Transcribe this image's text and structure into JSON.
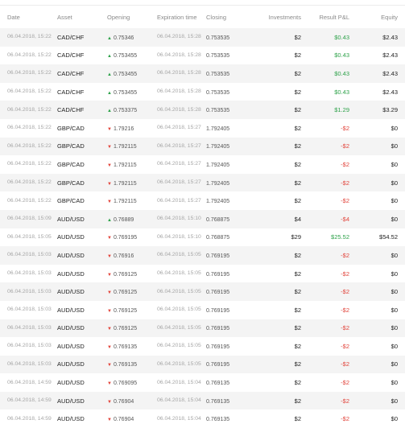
{
  "headers": {
    "date": "Date",
    "asset": "Asset",
    "opening": "Opening",
    "expiration": "Expiration time",
    "closing": "Closing",
    "investments": "Investments",
    "result": "Result P&L",
    "equity": "Equity"
  },
  "colors": {
    "up": "#2ea24a",
    "down": "#e2453c"
  },
  "rows": [
    {
      "date": "06.04.2018, 15:22",
      "asset": "CAD/CHF",
      "dir": "up",
      "opening": "0.75346",
      "exp": "06.04.2018, 15:28",
      "closing": "0.753535",
      "inv": "$2",
      "result": "$0.43",
      "res_sign": "pos",
      "equity": "$2.43"
    },
    {
      "date": "06.04.2018, 15:22",
      "asset": "CAD/CHF",
      "dir": "up",
      "opening": "0.753455",
      "exp": "06.04.2018, 15:28",
      "closing": "0.753535",
      "inv": "$2",
      "result": "$0.43",
      "res_sign": "pos",
      "equity": "$2.43"
    },
    {
      "date": "06.04.2018, 15:22",
      "asset": "CAD/CHF",
      "dir": "up",
      "opening": "0.753455",
      "exp": "06.04.2018, 15:28",
      "closing": "0.753535",
      "inv": "$2",
      "result": "$0.43",
      "res_sign": "pos",
      "equity": "$2.43"
    },
    {
      "date": "06.04.2018, 15:22",
      "asset": "CAD/CHF",
      "dir": "up",
      "opening": "0.753455",
      "exp": "06.04.2018, 15:28",
      "closing": "0.753535",
      "inv": "$2",
      "result": "$0.43",
      "res_sign": "pos",
      "equity": "$2.43"
    },
    {
      "date": "06.04.2018, 15:22",
      "asset": "CAD/CHF",
      "dir": "up",
      "opening": "0.753375",
      "exp": "06.04.2018, 15:28",
      "closing": "0.753535",
      "inv": "$2",
      "result": "$1.29",
      "res_sign": "pos",
      "equity": "$3.29"
    },
    {
      "date": "06.04.2018, 15:22",
      "asset": "GBP/CAD",
      "dir": "down",
      "opening": "1.79216",
      "exp": "06.04.2018, 15:27",
      "closing": "1.792405",
      "inv": "$2",
      "result": "-$2",
      "res_sign": "neg",
      "equity": "$0"
    },
    {
      "date": "06.04.2018, 15:22",
      "asset": "GBP/CAD",
      "dir": "down",
      "opening": "1.792115",
      "exp": "06.04.2018, 15:27",
      "closing": "1.792405",
      "inv": "$2",
      "result": "-$2",
      "res_sign": "neg",
      "equity": "$0"
    },
    {
      "date": "06.04.2018, 15:22",
      "asset": "GBP/CAD",
      "dir": "down",
      "opening": "1.792115",
      "exp": "06.04.2018, 15:27",
      "closing": "1.792405",
      "inv": "$2",
      "result": "-$2",
      "res_sign": "neg",
      "equity": "$0"
    },
    {
      "date": "06.04.2018, 15:22",
      "asset": "GBP/CAD",
      "dir": "down",
      "opening": "1.792115",
      "exp": "06.04.2018, 15:27",
      "closing": "1.792405",
      "inv": "$2",
      "result": "-$2",
      "res_sign": "neg",
      "equity": "$0"
    },
    {
      "date": "06.04.2018, 15:22",
      "asset": "GBP/CAD",
      "dir": "down",
      "opening": "1.792115",
      "exp": "06.04.2018, 15:27",
      "closing": "1.792405",
      "inv": "$2",
      "result": "-$2",
      "res_sign": "neg",
      "equity": "$0"
    },
    {
      "date": "06.04.2018, 15:09",
      "asset": "AUD/USD",
      "dir": "up",
      "opening": "0.76889",
      "exp": "06.04.2018, 15:10",
      "closing": "0.768875",
      "inv": "$4",
      "result": "-$4",
      "res_sign": "neg",
      "equity": "$0"
    },
    {
      "date": "06.04.2018, 15:05",
      "asset": "AUD/USD",
      "dir": "down",
      "opening": "0.769195",
      "exp": "06.04.2018, 15:10",
      "closing": "0.768875",
      "inv": "$29",
      "result": "$25.52",
      "res_sign": "pos",
      "equity": "$54.52"
    },
    {
      "date": "06.04.2018, 15:03",
      "asset": "AUD/USD",
      "dir": "down",
      "opening": "0.76916",
      "exp": "06.04.2018, 15:05",
      "closing": "0.769195",
      "inv": "$2",
      "result": "-$2",
      "res_sign": "neg",
      "equity": "$0"
    },
    {
      "date": "06.04.2018, 15:03",
      "asset": "AUD/USD",
      "dir": "down",
      "opening": "0.769125",
      "exp": "06.04.2018, 15:05",
      "closing": "0.769195",
      "inv": "$2",
      "result": "-$2",
      "res_sign": "neg",
      "equity": "$0"
    },
    {
      "date": "06.04.2018, 15:03",
      "asset": "AUD/USD",
      "dir": "down",
      "opening": "0.769125",
      "exp": "06.04.2018, 15:05",
      "closing": "0.769195",
      "inv": "$2",
      "result": "-$2",
      "res_sign": "neg",
      "equity": "$0"
    },
    {
      "date": "06.04.2018, 15:03",
      "asset": "AUD/USD",
      "dir": "down",
      "opening": "0.769125",
      "exp": "06.04.2018, 15:05",
      "closing": "0.769195",
      "inv": "$2",
      "result": "-$2",
      "res_sign": "neg",
      "equity": "$0"
    },
    {
      "date": "06.04.2018, 15:03",
      "asset": "AUD/USD",
      "dir": "down",
      "opening": "0.769125",
      "exp": "06.04.2018, 15:05",
      "closing": "0.769195",
      "inv": "$2",
      "result": "-$2",
      "res_sign": "neg",
      "equity": "$0"
    },
    {
      "date": "06.04.2018, 15:03",
      "asset": "AUD/USD",
      "dir": "down",
      "opening": "0.769135",
      "exp": "06.04.2018, 15:05",
      "closing": "0.769195",
      "inv": "$2",
      "result": "-$2",
      "res_sign": "neg",
      "equity": "$0"
    },
    {
      "date": "06.04.2018, 15:03",
      "asset": "AUD/USD",
      "dir": "down",
      "opening": "0.769135",
      "exp": "06.04.2018, 15:05",
      "closing": "0.769195",
      "inv": "$2",
      "result": "-$2",
      "res_sign": "neg",
      "equity": "$0"
    },
    {
      "date": "06.04.2018, 14:59",
      "asset": "AUD/USD",
      "dir": "down",
      "opening": "0.769095",
      "exp": "06.04.2018, 15:04",
      "closing": "0.769135",
      "inv": "$2",
      "result": "-$2",
      "res_sign": "neg",
      "equity": "$0"
    },
    {
      "date": "06.04.2018, 14:59",
      "asset": "AUD/USD",
      "dir": "down",
      "opening": "0.76904",
      "exp": "06.04.2018, 15:04",
      "closing": "0.769135",
      "inv": "$2",
      "result": "-$2",
      "res_sign": "neg",
      "equity": "$0"
    },
    {
      "date": "06.04.2018, 14:59",
      "asset": "AUD/USD",
      "dir": "down",
      "opening": "0.76904",
      "exp": "06.04.2018, 15:04",
      "closing": "0.769135",
      "inv": "$2",
      "result": "-$2",
      "res_sign": "neg",
      "equity": "$0"
    }
  ]
}
